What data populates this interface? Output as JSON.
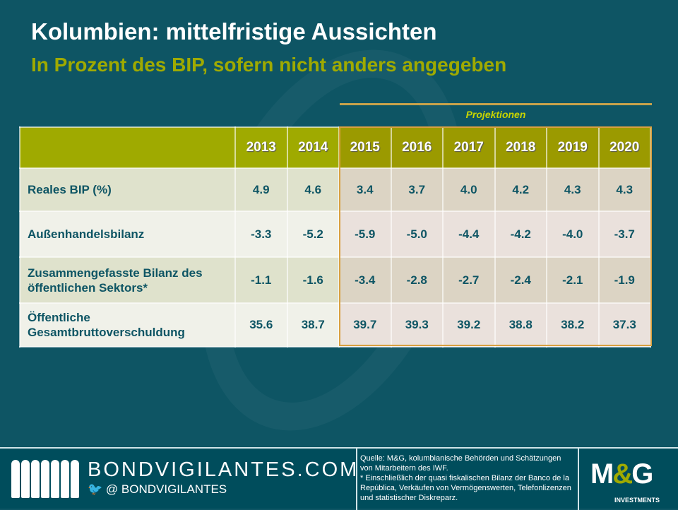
{
  "header": {
    "title": "Kolumbien: mittelfristige Aussichten",
    "subtitle": "In Prozent des BIP, sofern nicht anders angegeben",
    "projections_label": "Projektionen"
  },
  "table": {
    "years": [
      "2013",
      "2014",
      "2015",
      "2016",
      "2017",
      "2018",
      "2019",
      "2020"
    ],
    "rows": [
      {
        "label": "Reales BIP  (%)",
        "values": [
          "4.9",
          "4.6",
          "3.4",
          "3.7",
          "4.0",
          "4.2",
          "4.3",
          "4.3"
        ]
      },
      {
        "label": "Außenhandelsbilanz",
        "values": [
          "-3.3",
          "-5.2",
          "-5.9",
          "-5.0",
          "-4.4",
          "-4.2",
          "-4.0",
          "-3.7"
        ]
      },
      {
        "label": "Zusammengefasste Bilanz des öffentlichen Sektors*",
        "values": [
          "-1.1",
          "-1.6",
          "-3.4",
          "-2.8",
          "-2.7",
          "-2.4",
          "-2.1",
          "-1.9"
        ]
      },
      {
        "label": "Öffentliche Gesamtbruttoverschuldung",
        "values": [
          "35.6",
          "38.7",
          "39.7",
          "39.3",
          "39.2",
          "38.8",
          "38.2",
          "37.3"
        ]
      }
    ]
  },
  "footer": {
    "site": "BONDVIGILANTES.COM",
    "twitter": "@ BONDVIGILANTES",
    "source": "Quelle: M&G,  kolumbianische Behörden und Schätzungen von Mitarbeitern des IWF.",
    "note": "* Einschließlich der quasi fiskalischen Bilanz der Banco de la República, Verkäufen von Vermögenswerten, Telefonlizenzen und statistischer Diskreparz.",
    "logo_main": "M&G",
    "logo_sub": "INVESTMENTS"
  }
}
